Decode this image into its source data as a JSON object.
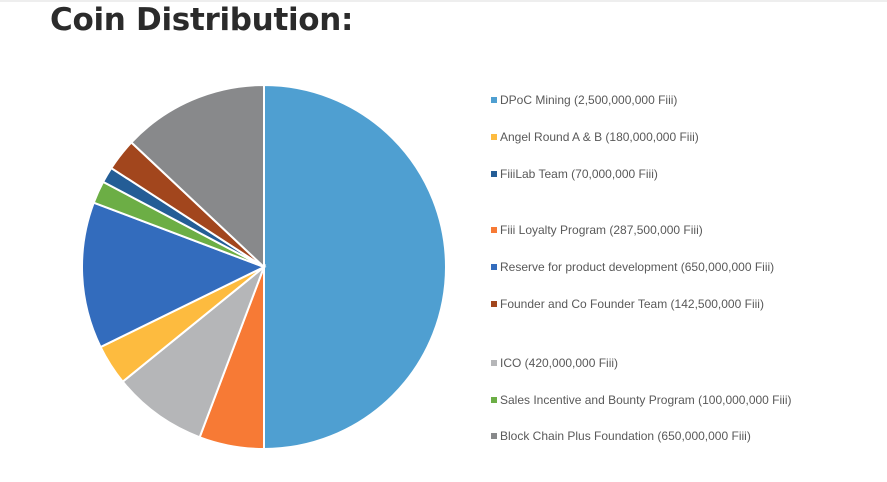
{
  "chart_data": {
    "type": "pie",
    "title": "Coin Distribution:",
    "legend_position": "right",
    "series": [
      {
        "name": "DPoC Mining (2,500,000,000 Fiii)",
        "value": 2500000000,
        "color": "#4f9fd1"
      },
      {
        "name": "Angel Round A & B (180,000,000 Fiii)",
        "value": 180000000,
        "color": "#fdbb3f"
      },
      {
        "name": "FiiiLab Team (70,000,000 Fiii)",
        "value": 70000000,
        "color": "#245d96"
      },
      {
        "name": "Fiii Loyalty Program (287,500,000 Fiii)",
        "value": 287500000,
        "color": "#f77a35"
      },
      {
        "name": "Reserve for product development (650,000,000 Fiii)",
        "value": 650000000,
        "color": "#336cbd"
      },
      {
        "name": "Founder and Co Founder Team (142,500,000 Fiii)",
        "value": 142500000,
        "color": "#a2461d"
      },
      {
        "name": "ICO (420,000,000 Fiii)",
        "value": 420000000,
        "color": "#b5b6b8"
      },
      {
        "name": "Sales Incentive and Bounty Program (100,000,000 Fiii)",
        "value": 100000000,
        "color": "#6cae45"
      },
      {
        "name": "Block Chain Plus Foundation (650,000,000 Fiii)",
        "value": 650000000,
        "color": "#88898b"
      }
    ],
    "pie_order_clockwise_from_top": [
      0,
      3,
      6,
      1,
      4,
      7,
      2,
      5,
      8
    ]
  }
}
